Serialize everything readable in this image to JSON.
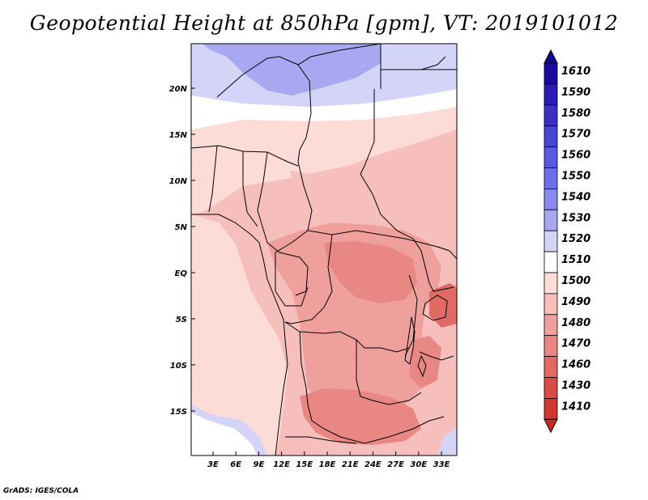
{
  "title": "Geopotential Height at 850hPa [gpm], VT: 2019101012",
  "credit": "GrADS: IGES/COLA",
  "lat_ticks": [
    {
      "label": "20N",
      "lat": 20
    },
    {
      "label": "15N",
      "lat": 15
    },
    {
      "label": "10N",
      "lat": 10
    },
    {
      "label": "5N",
      "lat": 5
    },
    {
      "label": "EQ",
      "lat": 0
    },
    {
      "label": "5S",
      "lat": -5
    },
    {
      "label": "10S",
      "lat": -10
    },
    {
      "label": "15S",
      "lat": -15
    }
  ],
  "lon_ticks": [
    {
      "label": "3E",
      "lon": 3
    },
    {
      "label": "6E",
      "lon": 6
    },
    {
      "label": "9E",
      "lon": 9
    },
    {
      "label": "12E",
      "lon": 12
    },
    {
      "label": "15E",
      "lon": 15
    },
    {
      "label": "18E",
      "lon": 18
    },
    {
      "label": "21E",
      "lon": 21
    },
    {
      "label": "24E",
      "lon": 24
    },
    {
      "label": "27E",
      "lon": 27
    },
    {
      "label": "30E",
      "lon": 30
    },
    {
      "label": "33E",
      "lon": 33
    }
  ],
  "colorbar": {
    "levels": [
      {
        "label": "1610",
        "color": "#1a0aa0"
      },
      {
        "label": "1590",
        "color": "#2a1cb4"
      },
      {
        "label": "1580",
        "color": "#3a30c4"
      },
      {
        "label": "1570",
        "color": "#4a44d2"
      },
      {
        "label": "1560",
        "color": "#5a58de"
      },
      {
        "label": "1550",
        "color": "#6e6ee6"
      },
      {
        "label": "1540",
        "color": "#8888ee"
      },
      {
        "label": "1530",
        "color": "#a8a8f2"
      },
      {
        "label": "1520",
        "color": "#d4d4f8"
      },
      {
        "label": "1510",
        "color": "#ffffff"
      },
      {
        "label": "1500",
        "color": "#fddcd8"
      },
      {
        "label": "1490",
        "color": "#f7bfbb"
      },
      {
        "label": "1480",
        "color": "#f0a09c"
      },
      {
        "label": "1470",
        "color": "#e88784"
      },
      {
        "label": "1460",
        "color": "#e06a66"
      },
      {
        "label": "1430",
        "color": "#d84c48"
      },
      {
        "label": "1410",
        "color": "#d03632"
      }
    ],
    "top_color": "#120690",
    "bottom_color": "#c8281e"
  },
  "field_colors": {
    "c1530": "#a8a8f2",
    "c1520": "#d4d4f8",
    "c1510": "#ffffff",
    "c1500": "#fddcd8",
    "c1490": "#f7bfbb",
    "c1480": "#f0a09c",
    "c1470": "#e88784",
    "c1460": "#e06a66",
    "border": "#000000"
  }
}
